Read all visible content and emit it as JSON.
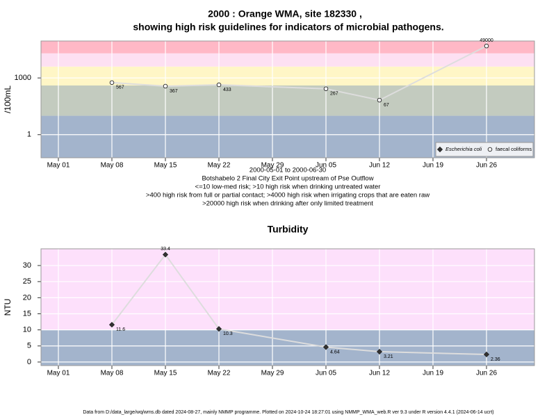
{
  "title_lines": [
    "2000 : Orange WMA, site 182330 ,",
    "showing high risk guidelines for indicators of microbial pathogens."
  ],
  "footer": "Data from D:/data_large/wq/wms.db dated 2024-08-27, mainly NMMP programme. Plotted on 2024-10-24 18:27:01 using NMMP_WMA_web.R ver 9.3 under R version 4.4.1 (2024-06-14 ucrt)",
  "chart_data": [
    {
      "type": "line",
      "ylabel": "/100mL",
      "log_scale": true,
      "grid": true,
      "ylim": [
        0.06,
        90000
      ],
      "yticks": [
        1,
        1000
      ],
      "x": [
        "May 08",
        "May 15",
        "May 22",
        "Jun 05",
        "Jun 12",
        "Jun 26"
      ],
      "xticks": [
        "May 01",
        "May 08",
        "May 15",
        "May 22",
        "May 29",
        "Jun 05",
        "Jun 12",
        "Jun 19",
        "Jun 26"
      ],
      "bands": [
        {
          "from": 0.06,
          "to": 10,
          "color": "#a3b4cc"
        },
        {
          "from": 10,
          "to": 400,
          "color": "#c3cbbf"
        },
        {
          "from": 400,
          "to": 4000,
          "color": "#fff6c6"
        },
        {
          "from": 4000,
          "to": 20000,
          "color": "#fde0f2"
        },
        {
          "from": 20000,
          "to": 90000,
          "color": "#ffb8c6"
        }
      ],
      "legend": "lower right",
      "line_color": "#dddddd",
      "series": [
        {
          "name": "Escherichia coli",
          "color": "#333333",
          "marker": "diamond",
          "values": [
            null,
            null,
            null,
            null,
            null,
            null
          ]
        },
        {
          "name": "faecal coliforms",
          "color": "#ffffff",
          "marker": "circle",
          "values": [
            567,
            367,
            433,
            267,
            67,
            49000
          ]
        }
      ],
      "notes": [
        "2000-05-01 to 2000-06-30",
        "Botshabelo 2 Final City Exit Point upstream of Pse Outflow",
        "<=10 low-med risk; >10 high risk when drinking untreated water",
        ">400 high risk from full or partial contact; >4000 high risk when irrigating crops that are eaten raw",
        ">20000 high risk when drinking after only limited treatment"
      ]
    },
    {
      "type": "line",
      "title": "Turbidity",
      "ylabel": "NTU",
      "log_scale": false,
      "grid": true,
      "ylim": [
        -1.1,
        35.2
      ],
      "yticks": [
        0,
        5,
        10,
        15,
        20,
        25,
        30
      ],
      "x": [
        "May 08",
        "May 15",
        "May 22",
        "Jun 05",
        "Jun 12",
        "Jun 26"
      ],
      "xticks": [
        "May 01",
        "May 08",
        "May 15",
        "May 22",
        "May 29",
        "Jun 05",
        "Jun 12",
        "Jun 19",
        "Jun 26"
      ],
      "bands": [
        {
          "from": -1.1,
          "to": 10,
          "color": "#a3b4cc"
        },
        {
          "from": 10,
          "to": 35.2,
          "color": "#fde0fb"
        }
      ],
      "line_color": "#dddddd",
      "series": [
        {
          "color": "#333333",
          "marker": "diamond",
          "values": [
            11.6,
            33.4,
            10.3,
            4.64,
            3.21,
            2.36
          ]
        }
      ]
    }
  ]
}
